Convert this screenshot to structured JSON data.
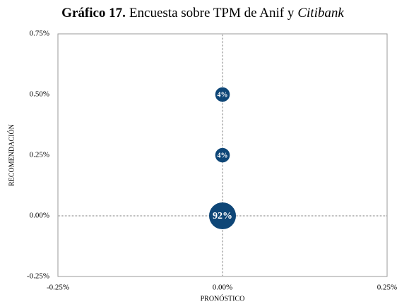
{
  "chart_data": {
    "type": "bubble",
    "title": [
      "Gráfico 17.",
      "Encuesta sobre TPM de Anif y",
      "Citibank"
    ],
    "x_label": "PRONÓSTICO",
    "y_label": "RECOMENDACIÓN",
    "xlim": [
      -0.25,
      0.25
    ],
    "xticks": [
      {
        "value": -0.25,
        "label": "-0.25%"
      },
      {
        "value": 0,
        "label": "0.00%"
      },
      {
        "value": 0.25,
        "label": "0.25%"
      }
    ],
    "ylim": [
      -0.25,
      0.75
    ],
    "yticks": [
      {
        "value": -0.25,
        "label": "-0.25%"
      },
      {
        "value": 0,
        "label": "0.00%"
      },
      {
        "value": 0.25,
        "label": "0.25%"
      },
      {
        "value": 0.5,
        "label": "0.50%"
      },
      {
        "value": 0.75,
        "label": "0.75%"
      }
    ],
    "zero_lines": true,
    "series": [
      {
        "color": "#0e4677",
        "x": [
          0,
          0,
          0
        ],
        "values": [
          0,
          0.25,
          0.5
        ],
        "sizes": [
          92,
          4,
          4
        ],
        "value_labels": [
          "92%",
          "4%",
          "4%"
        ]
      }
    ]
  }
}
